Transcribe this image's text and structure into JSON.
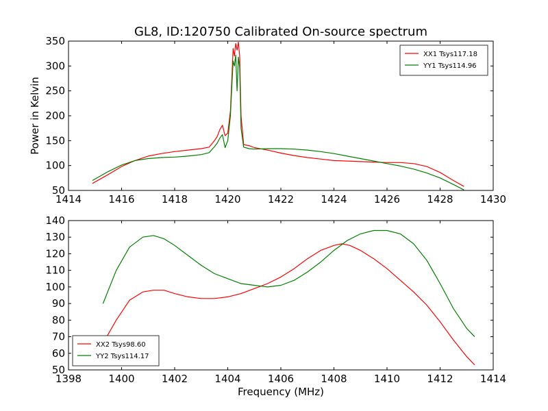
{
  "chart_data": [
    {
      "type": "line",
      "title": "GL8, ID:120750 Calibrated On-source spectrum",
      "xlabel": "",
      "ylabel": "Power in Kelvin",
      "xlim": [
        1414,
        1430
      ],
      "ylim": [
        50,
        350
      ],
      "x_ticks": [
        "1414",
        "1416",
        "1418",
        "1420",
        "1422",
        "1424",
        "1426",
        "1428",
        "1430"
      ],
      "y_ticks": [
        "50",
        "100",
        "150",
        "200",
        "250",
        "300",
        "350"
      ],
      "grid": false,
      "legend_position": "top-right",
      "series": [
        {
          "name": "XX1 Tsys117.18",
          "color": "#ff0000",
          "x": [
            1414.9,
            1415.5,
            1416.0,
            1416.5,
            1417.0,
            1417.5,
            1418.0,
            1418.5,
            1419.0,
            1419.3,
            1419.5,
            1419.6,
            1419.7,
            1419.8,
            1419.9,
            1420.0,
            1420.1,
            1420.15,
            1420.2,
            1420.25,
            1420.3,
            1420.35,
            1420.4,
            1420.45,
            1420.5,
            1420.6,
            1420.8,
            1421.0,
            1421.5,
            1422.0,
            1422.5,
            1423.0,
            1423.5,
            1424.0,
            1424.5,
            1425.0,
            1425.5,
            1426.0,
            1426.5,
            1427.0,
            1427.5,
            1428.0,
            1428.5,
            1428.9
          ],
          "values": [
            64,
            82,
            98,
            110,
            119,
            124,
            128,
            131,
            134,
            137,
            150,
            158,
            172,
            181,
            160,
            165,
            210,
            270,
            335,
            320,
            345,
            332,
            348,
            320,
            200,
            142,
            140,
            136,
            131,
            125,
            120,
            116,
            113,
            110,
            109,
            108,
            107,
            106,
            106,
            104,
            98,
            86,
            70,
            58
          ]
        },
        {
          "name": "YY1 Tsys114.96",
          "color": "#008000",
          "x": [
            1414.9,
            1415.5,
            1416.0,
            1416.5,
            1417.0,
            1417.5,
            1418.0,
            1418.5,
            1419.0,
            1419.3,
            1419.5,
            1419.6,
            1419.7,
            1419.8,
            1419.9,
            1420.0,
            1420.1,
            1420.15,
            1420.2,
            1420.25,
            1420.3,
            1420.35,
            1420.4,
            1420.45,
            1420.5,
            1420.6,
            1420.8,
            1421.0,
            1421.5,
            1422.0,
            1422.5,
            1423.0,
            1423.5,
            1424.0,
            1424.5,
            1425.0,
            1425.5,
            1426.0,
            1426.5,
            1427.0,
            1427.5,
            1428.0,
            1428.5,
            1428.9
          ],
          "values": [
            70,
            88,
            101,
            110,
            114,
            116,
            117,
            119,
            122,
            126,
            138,
            145,
            155,
            162,
            136,
            150,
            200,
            255,
            310,
            300,
            322,
            250,
            318,
            296,
            175,
            137,
            134,
            133,
            134,
            134,
            133,
            131,
            128,
            124,
            119,
            114,
            109,
            104,
            99,
            93,
            85,
            75,
            62,
            51
          ]
        }
      ]
    },
    {
      "type": "line",
      "title": "",
      "xlabel": "Frequency (MHz)",
      "ylabel": "",
      "xlim": [
        1398,
        1414
      ],
      "ylim": [
        50,
        140
      ],
      "x_ticks": [
        "1398",
        "1400",
        "1402",
        "1404",
        "1406",
        "1408",
        "1410",
        "1412",
        "1414"
      ],
      "y_ticks": [
        "50",
        "60",
        "70",
        "80",
        "90",
        "100",
        "110",
        "120",
        "130",
        "140"
      ],
      "grid": false,
      "legend_position": "bottom-left",
      "series": [
        {
          "name": "XX2 Tsys98.60",
          "color": "#ff0000",
          "x": [
            1399.3,
            1399.8,
            1400.3,
            1400.8,
            1401.2,
            1401.6,
            1402.0,
            1402.5,
            1403.0,
            1403.5,
            1404.0,
            1404.5,
            1405.0,
            1405.5,
            1406.0,
            1406.5,
            1407.0,
            1407.5,
            1408.0,
            1408.3,
            1408.6,
            1409.0,
            1409.5,
            1410.0,
            1410.5,
            1411.0,
            1411.5,
            1412.0,
            1412.5,
            1413.0,
            1413.3
          ],
          "values": [
            66,
            80,
            92,
            97,
            98,
            98,
            96,
            94,
            93,
            93,
            94,
            96,
            99,
            102,
            106,
            111,
            117,
            122,
            125,
            126,
            125,
            122,
            117,
            111,
            104,
            97,
            89,
            79,
            68,
            58,
            53
          ]
        },
        {
          "name": "YY2 Tsys114.17",
          "color": "#008000",
          "x": [
            1399.3,
            1399.8,
            1400.3,
            1400.8,
            1401.2,
            1401.6,
            1402.0,
            1402.5,
            1403.0,
            1403.5,
            1404.0,
            1404.5,
            1405.0,
            1405.5,
            1406.0,
            1406.5,
            1407.0,
            1407.5,
            1408.0,
            1408.5,
            1409.0,
            1409.5,
            1410.0,
            1410.5,
            1411.0,
            1411.5,
            1412.0,
            1412.5,
            1413.0,
            1413.3
          ],
          "values": [
            90,
            110,
            124,
            130,
            131,
            129,
            125,
            119,
            113,
            108,
            105,
            102,
            101,
            100,
            101,
            104,
            109,
            115,
            122,
            128,
            132,
            134,
            134,
            132,
            126,
            116,
            102,
            87,
            75,
            70
          ]
        }
      ]
    }
  ]
}
